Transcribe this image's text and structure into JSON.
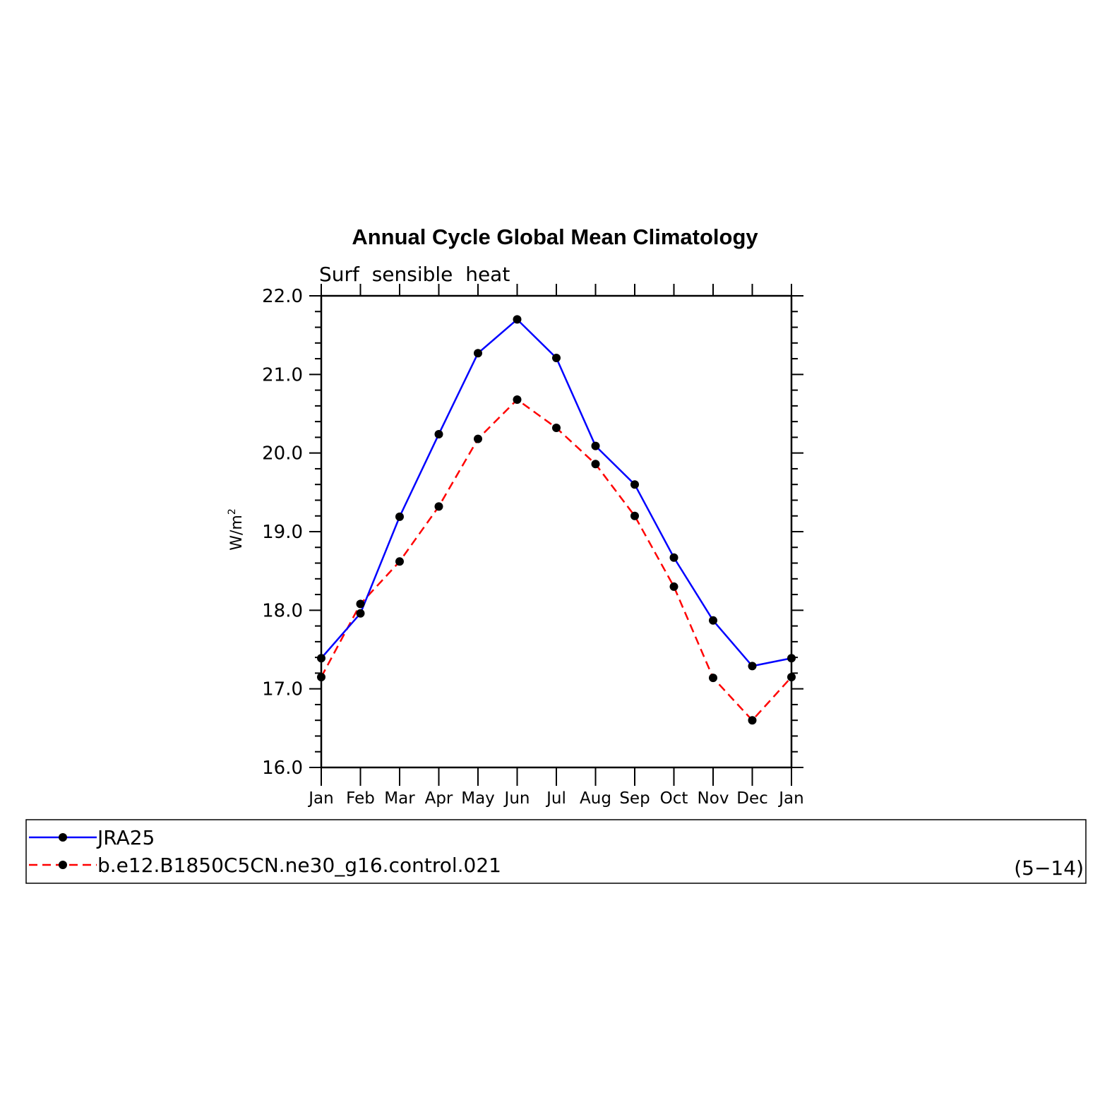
{
  "chart_data": {
    "type": "line",
    "title": "Annual Cycle Global Mean Climatology",
    "subtitle": "Surf  sensible  heat",
    "ylabel_base": "W/m",
    "ylabel_sup": "2",
    "categories": [
      "Jan",
      "Feb",
      "Mar",
      "Apr",
      "May",
      "Jun",
      "Jul",
      "Aug",
      "Sep",
      "Oct",
      "Nov",
      "Dec",
      "Jan"
    ],
    "yticks": [
      "16.0",
      "17.0",
      "18.0",
      "19.0",
      "20.0",
      "21.0",
      "22.0"
    ],
    "ylim": [
      16,
      22
    ],
    "grid": false,
    "legend_position": "bottom",
    "series": [
      {
        "name": "JRA25",
        "color": "#0000ff",
        "dashed": false,
        "values": [
          17.39,
          17.96,
          19.19,
          20.24,
          21.27,
          21.7,
          21.21,
          20.09,
          19.6,
          18.67,
          17.87,
          17.29,
          17.39
        ]
      },
      {
        "name": "b.e12.B1850C5CN.ne30_g16.control.021",
        "color": "#ff0000",
        "dashed": true,
        "values": [
          17.15,
          18.08,
          18.62,
          19.32,
          20.18,
          20.68,
          20.32,
          19.86,
          19.2,
          18.3,
          17.14,
          16.6,
          17.15
        ]
      }
    ],
    "annotation": "(5−14)"
  }
}
